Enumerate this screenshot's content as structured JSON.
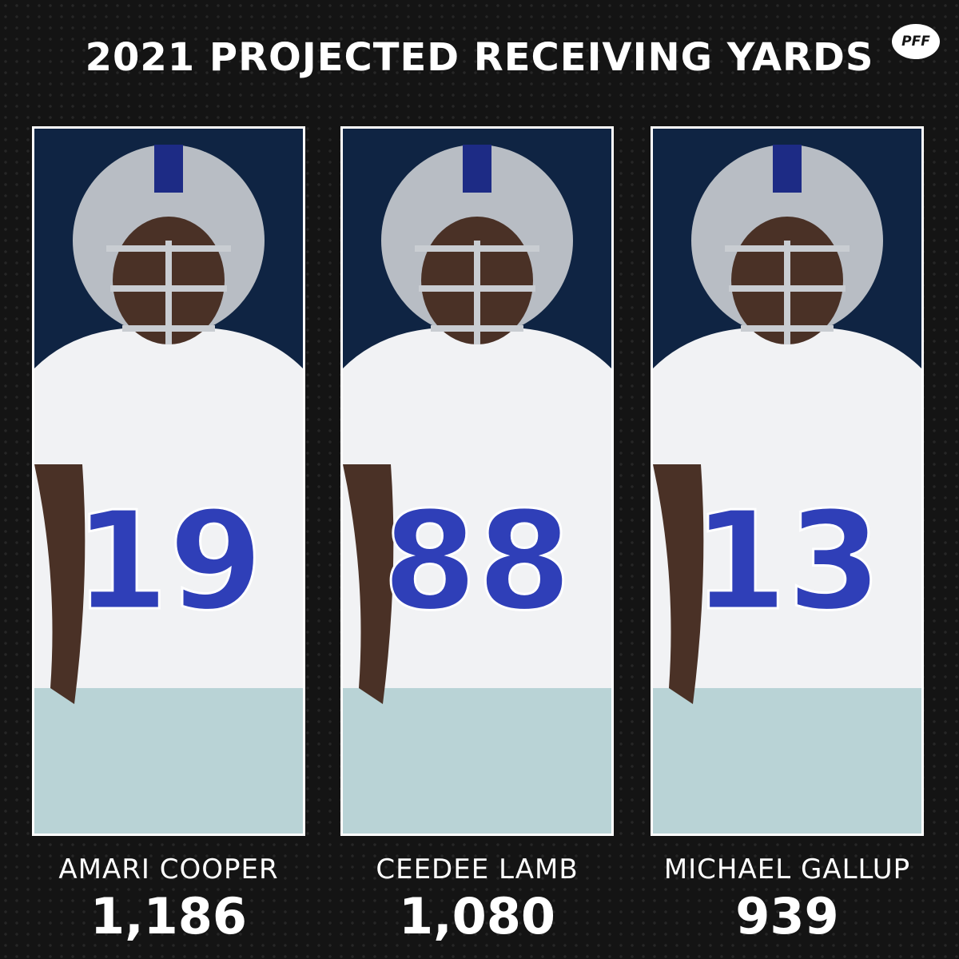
{
  "header": {
    "title": "2021 PROJECTED RECEIVING YARDS",
    "logo": "PFF"
  },
  "players": [
    {
      "name": "AMARI COOPER",
      "yards": "1,186",
      "jersey": "19"
    },
    {
      "name": "CEEDEE LAMB",
      "yards": "1,080",
      "jersey": "88"
    },
    {
      "name": "MICHAEL GALLUP",
      "yards": "939",
      "jersey": "13"
    }
  ]
}
